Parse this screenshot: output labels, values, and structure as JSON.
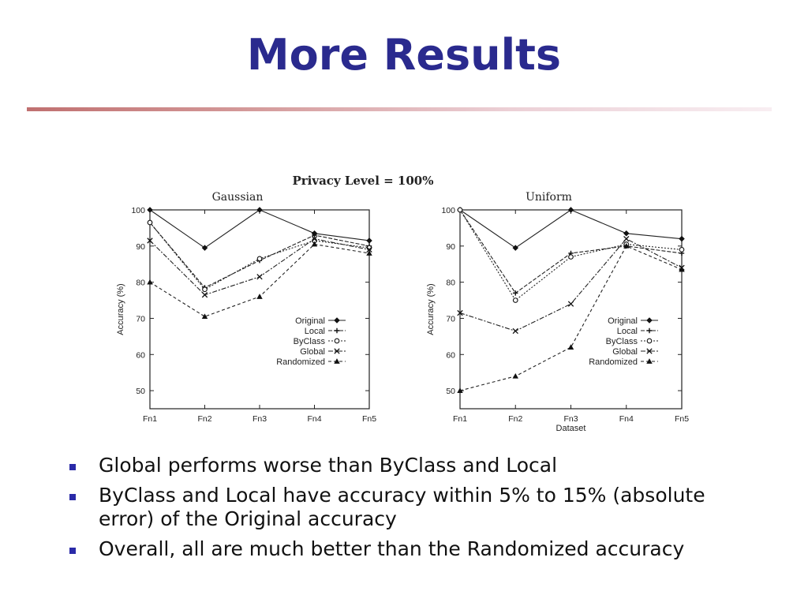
{
  "slide": {
    "title": "More Results"
  },
  "bullets": [
    "Global performs worse than ByClass and Local",
    "ByClass and Local have accuracy within 5% to 15% (absolute error) of the Original accuracy",
    "Overall, all are much better than the Randomized accuracy"
  ],
  "chart_data": [
    {
      "type": "line",
      "suptitle": "Privacy Level = 100%",
      "title": "Gaussian",
      "xlabel": "",
      "ylabel": "Accuracy (%)",
      "categories": [
        "Fn1",
        "Fn2",
        "Fn3",
        "Fn4",
        "Fn5"
      ],
      "yticks": [
        50,
        60,
        70,
        80,
        90,
        100
      ],
      "ylim": [
        45,
        100
      ],
      "legend_position": "bottom-right",
      "grid": false,
      "series": [
        {
          "name": "Original",
          "marker": "diamond",
          "values": [
            100,
            89.5,
            100,
            93.5,
            91.5
          ]
        },
        {
          "name": "Local",
          "marker": "plus",
          "values": [
            96.5,
            78.5,
            86,
            93,
            90
          ]
        },
        {
          "name": "ByClass",
          "marker": "circle",
          "values": [
            96.5,
            78,
            86.5,
            91.5,
            89.5
          ]
        },
        {
          "name": "Global",
          "marker": "x",
          "values": [
            91.5,
            76.5,
            81.5,
            92,
            89
          ]
        },
        {
          "name": "Randomized",
          "marker": "triangle",
          "values": [
            80,
            70.5,
            76,
            90.5,
            88
          ]
        }
      ]
    },
    {
      "type": "line",
      "title": "Uniform",
      "xlabel": "Dataset",
      "ylabel": "Accuracy (%)",
      "categories": [
        "Fn1",
        "Fn2",
        "Fn3",
        "Fn4",
        "Fn5"
      ],
      "yticks": [
        50,
        60,
        70,
        80,
        90,
        100
      ],
      "ylim": [
        45,
        100
      ],
      "legend_position": "bottom-right",
      "grid": false,
      "series": [
        {
          "name": "Original",
          "marker": "diamond",
          "values": [
            100,
            89.5,
            100,
            93.5,
            92
          ]
        },
        {
          "name": "Local",
          "marker": "plus",
          "values": [
            100,
            77,
            88,
            90,
            88
          ]
        },
        {
          "name": "ByClass",
          "marker": "circle",
          "values": [
            100,
            75,
            87,
            90.5,
            89
          ]
        },
        {
          "name": "Global",
          "marker": "x",
          "values": [
            71.5,
            66.5,
            74,
            92,
            84
          ]
        },
        {
          "name": "Randomized",
          "marker": "triangle",
          "values": [
            50,
            54,
            62,
            90,
            83.5
          ]
        }
      ]
    }
  ]
}
